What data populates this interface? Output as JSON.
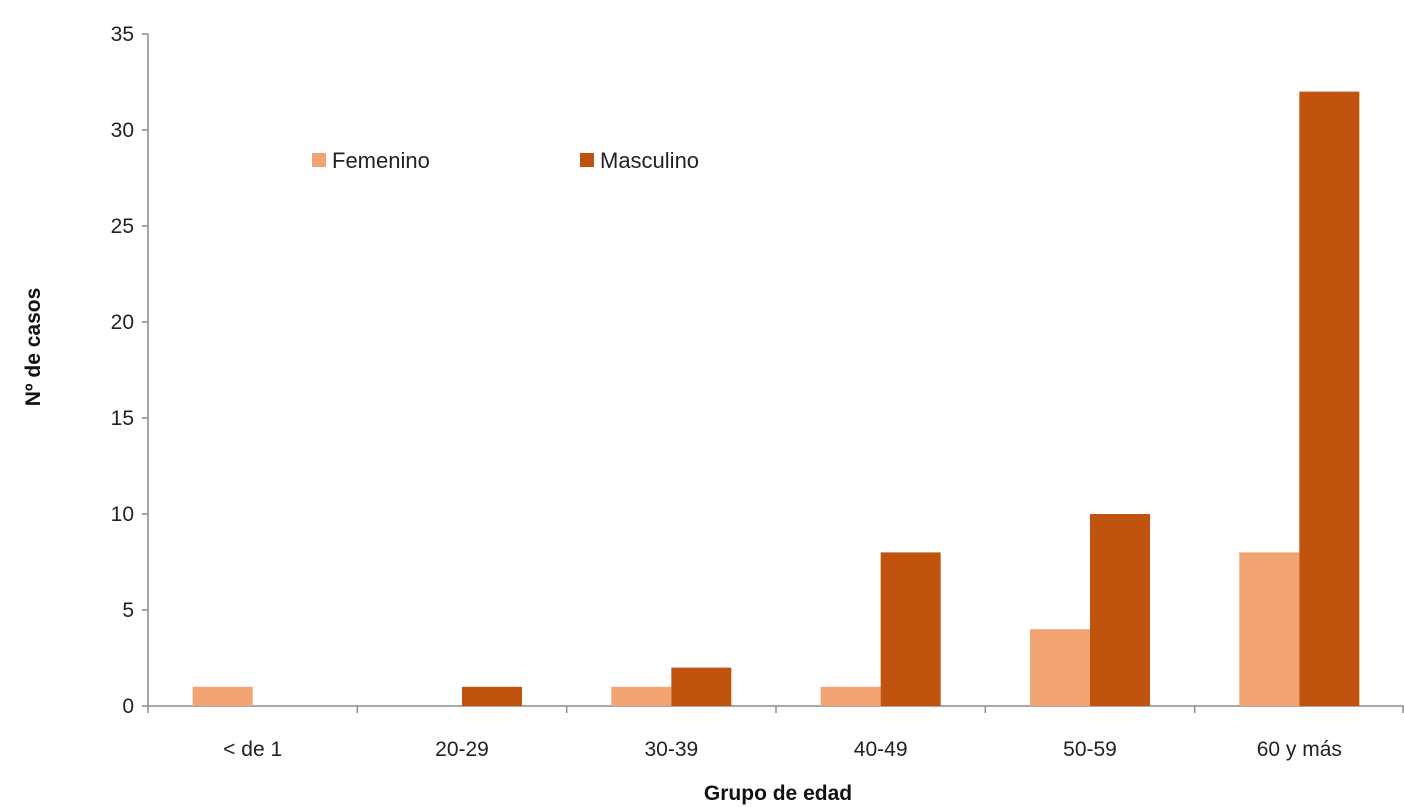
{
  "chart_data": {
    "type": "bar",
    "xlabel": "Grupo de edad",
    "ylabel": "Nº de casos",
    "categories": [
      "< de 1",
      "20-29",
      "30-39",
      "40-49",
      "50-59",
      "60 y más"
    ],
    "series": [
      {
        "name": "Femenino",
        "values": [
          1,
          0,
          1,
          1,
          4,
          8
        ],
        "color": "#F2A373"
      },
      {
        "name": "Masculino",
        "values": [
          0,
          1,
          2,
          8,
          10,
          32
        ],
        "color": "#C0540F"
      }
    ],
    "ylim": [
      0,
      35
    ],
    "yticks": [
      0,
      5,
      10,
      15,
      20,
      25,
      30,
      35
    ],
    "grid": false,
    "legend_position": "top-left"
  }
}
